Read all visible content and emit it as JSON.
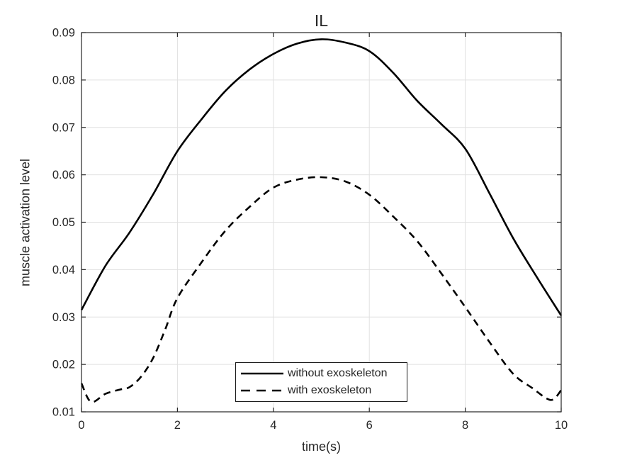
{
  "figure": {
    "background": "#ffffff"
  },
  "colors": {
    "line": "#000000",
    "grid": "#e0e0e0",
    "axis": "#262626",
    "text": "#262626",
    "legend_border": "#1a1a1a",
    "background": "#ffffff"
  },
  "chart_data": {
    "type": "line",
    "title": "IL",
    "xlabel": "time(s)",
    "ylabel": "muscle activation level",
    "xlim": [
      0,
      10
    ],
    "ylim": [
      0.01,
      0.09
    ],
    "xticks": [
      0,
      2,
      4,
      6,
      8,
      10
    ],
    "xtick_labels": [
      "0",
      "2",
      "4",
      "6",
      "8",
      "10"
    ],
    "yticks": [
      0.01,
      0.02,
      0.03,
      0.04,
      0.05,
      0.06,
      0.07,
      0.08,
      0.09
    ],
    "ytick_labels": [
      "0.01",
      "0.02",
      "0.03",
      "0.04",
      "0.05",
      "0.06",
      "0.07",
      "0.08",
      "0.09"
    ],
    "grid": true,
    "box": true,
    "tick_direction": "in",
    "legend_position": "south-inside",
    "series": [
      {
        "name": "without exoskeleton",
        "style": "solid",
        "color": "#000000",
        "x": [
          0,
          0.5,
          1.0,
          1.5,
          2.0,
          2.5,
          3.0,
          3.5,
          4.0,
          4.5,
          5.0,
          5.5,
          6.0,
          6.5,
          7.0,
          7.5,
          8.0,
          8.5,
          9.0,
          9.5,
          10
        ],
        "y": [
          0.0315,
          0.0408,
          0.0478,
          0.056,
          0.065,
          0.0717,
          0.0777,
          0.0822,
          0.0855,
          0.0877,
          0.0886,
          0.0879,
          0.0861,
          0.0815,
          0.0756,
          0.0707,
          0.0655,
          0.0562,
          0.0466,
          0.0383,
          0.0303
        ]
      },
      {
        "name": "with exoskeleton",
        "style": "dashed",
        "color": "#000000",
        "x": [
          0,
          0.2,
          0.5,
          0.8,
          1.0,
          1.25,
          1.5,
          1.75,
          2.0,
          2.5,
          3.0,
          3.5,
          4.0,
          4.5,
          5.0,
          5.5,
          6.0,
          6.5,
          7.0,
          7.5,
          8.0,
          8.5,
          9.0,
          9.4,
          9.7,
          9.85,
          10
        ],
        "y": [
          0.016,
          0.0121,
          0.0138,
          0.0147,
          0.0152,
          0.0175,
          0.0215,
          0.0275,
          0.034,
          0.0415,
          0.0482,
          0.0532,
          0.0573,
          0.059,
          0.0595,
          0.0586,
          0.0558,
          0.0512,
          0.046,
          0.0392,
          0.0321,
          0.0248,
          0.018,
          0.015,
          0.0128,
          0.0127,
          0.0146
        ]
      }
    ]
  }
}
